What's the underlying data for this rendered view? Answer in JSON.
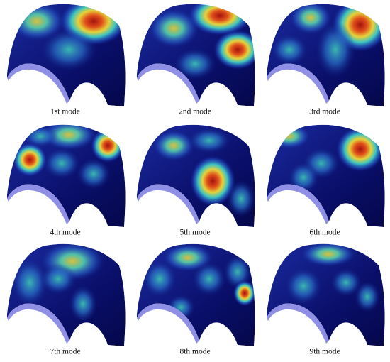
{
  "captions": [
    "1st mode",
    "2nd mode",
    "3rd mode",
    "4th mode",
    "5th mode",
    "6th mode",
    "7th mode",
    "8th mode",
    "9th mode"
  ]
}
